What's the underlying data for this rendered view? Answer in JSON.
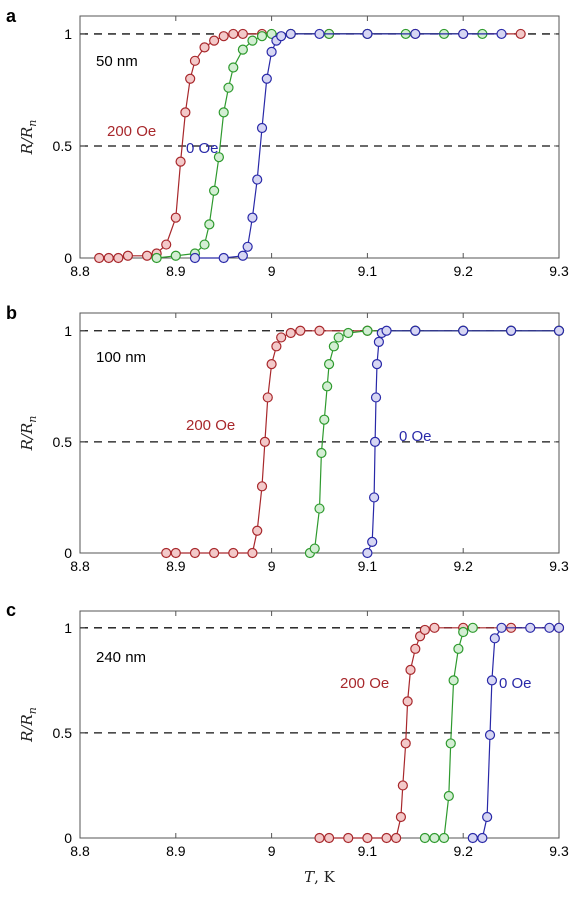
{
  "chart_data": [
    {
      "type": "scatter",
      "panel": "a",
      "thickness_label": "50 nm",
      "xlim": [
        8.8,
        9.3
      ],
      "ylim": [
        0,
        1.08
      ],
      "xticks": [
        "8.8",
        "8.9",
        "9",
        "9.1",
        "9.2",
        "9.3"
      ],
      "yticks": [
        "0",
        "0.5",
        "1"
      ],
      "ylabel": "R/Rn",
      "reference_lines": [
        0.5,
        1
      ],
      "series": [
        {
          "name": "200 Oe",
          "color": "#a8282c",
          "fill": "#f3c9c9",
          "points": [
            [
              8.82,
              0
            ],
            [
              8.83,
              0
            ],
            [
              8.84,
              0
            ],
            [
              8.85,
              0.01
            ],
            [
              8.87,
              0.01
            ],
            [
              8.88,
              0.02
            ],
            [
              8.89,
              0.06
            ],
            [
              8.9,
              0.18
            ],
            [
              8.905,
              0.43
            ],
            [
              8.91,
              0.65
            ],
            [
              8.915,
              0.8
            ],
            [
              8.92,
              0.88
            ],
            [
              8.93,
              0.94
            ],
            [
              8.94,
              0.97
            ],
            [
              8.95,
              0.99
            ],
            [
              8.96,
              1
            ],
            [
              8.97,
              1
            ],
            [
              8.99,
              1
            ],
            [
              9.02,
              1
            ],
            [
              9.06,
              1
            ],
            [
              9.1,
              1
            ],
            [
              9.15,
              1
            ],
            [
              9.2,
              1
            ],
            [
              9.26,
              1
            ]
          ]
        },
        {
          "name": "",
          "color": "#2e9a2e",
          "fill": "#d3eed3",
          "points": [
            [
              8.88,
              0
            ],
            [
              8.9,
              0.01
            ],
            [
              8.92,
              0.02
            ],
            [
              8.93,
              0.06
            ],
            [
              8.935,
              0.15
            ],
            [
              8.94,
              0.3
            ],
            [
              8.945,
              0.45
            ],
            [
              8.95,
              0.65
            ],
            [
              8.955,
              0.76
            ],
            [
              8.96,
              0.85
            ],
            [
              8.97,
              0.93
            ],
            [
              8.98,
              0.97
            ],
            [
              8.99,
              0.99
            ],
            [
              9.0,
              1
            ],
            [
              9.02,
              1
            ],
            [
              9.06,
              1
            ],
            [
              9.1,
              1
            ],
            [
              9.14,
              1
            ],
            [
              9.18,
              1
            ],
            [
              9.22,
              1
            ]
          ]
        },
        {
          "name": "0 Oe",
          "color": "#2929a8",
          "fill": "#d6d6f3",
          "points": [
            [
              8.92,
              0
            ],
            [
              8.95,
              0
            ],
            [
              8.97,
              0.01
            ],
            [
              8.975,
              0.05
            ],
            [
              8.98,
              0.18
            ],
            [
              8.985,
              0.35
            ],
            [
              8.99,
              0.58
            ],
            [
              8.995,
              0.8
            ],
            [
              9.0,
              0.92
            ],
            [
              9.005,
              0.97
            ],
            [
              9.01,
              0.99
            ],
            [
              9.02,
              1
            ],
            [
              9.05,
              1
            ],
            [
              9.1,
              1
            ],
            [
              9.15,
              1
            ],
            [
              9.2,
              1
            ],
            [
              9.24,
              1
            ]
          ]
        }
      ]
    },
    {
      "type": "scatter",
      "panel": "b",
      "thickness_label": "100 nm",
      "xlim": [
        8.8,
        9.3
      ],
      "ylim": [
        0,
        1.08
      ],
      "xticks": [
        "8.8",
        "8.9",
        "9",
        "9.1",
        "9.2",
        "9.3"
      ],
      "yticks": [
        "0",
        "0.5",
        "1"
      ],
      "ylabel": "R/Rn",
      "reference_lines": [
        0.5,
        1
      ],
      "series": [
        {
          "name": "200 Oe",
          "color": "#a8282c",
          "fill": "#f3c9c9",
          "points": [
            [
              8.89,
              0
            ],
            [
              8.9,
              0
            ],
            [
              8.92,
              0
            ],
            [
              8.94,
              0
            ],
            [
              8.96,
              0
            ],
            [
              8.98,
              0
            ],
            [
              8.985,
              0.1
            ],
            [
              8.99,
              0.3
            ],
            [
              8.993,
              0.5
            ],
            [
              8.996,
              0.7
            ],
            [
              9.0,
              0.85
            ],
            [
              9.005,
              0.93
            ],
            [
              9.01,
              0.97
            ],
            [
              9.02,
              0.99
            ],
            [
              9.03,
              1
            ],
            [
              9.05,
              1
            ],
            [
              9.1,
              1
            ],
            [
              9.15,
              1
            ],
            [
              9.2,
              1
            ],
            [
              9.25,
              1
            ],
            [
              9.3,
              1
            ]
          ]
        },
        {
          "name": "",
          "color": "#2e9a2e",
          "fill": "#d3eed3",
          "points": [
            [
              9.04,
              0
            ],
            [
              9.045,
              0.02
            ],
            [
              9.05,
              0.2
            ],
            [
              9.052,
              0.45
            ],
            [
              9.055,
              0.6
            ],
            [
              9.058,
              0.75
            ],
            [
              9.06,
              0.85
            ],
            [
              9.065,
              0.93
            ],
            [
              9.07,
              0.97
            ],
            [
              9.08,
              0.99
            ],
            [
              9.1,
              1
            ],
            [
              9.15,
              1
            ],
            [
              9.2,
              1
            ],
            [
              9.25,
              1
            ],
            [
              9.3,
              1
            ]
          ]
        },
        {
          "name": "0 Oe",
          "color": "#2929a8",
          "fill": "#d6d6f3",
          "points": [
            [
              9.1,
              0
            ],
            [
              9.105,
              0.05
            ],
            [
              9.107,
              0.25
            ],
            [
              9.108,
              0.5
            ],
            [
              9.109,
              0.7
            ],
            [
              9.11,
              0.85
            ],
            [
              9.112,
              0.95
            ],
            [
              9.115,
              0.99
            ],
            [
              9.12,
              1
            ],
            [
              9.15,
              1
            ],
            [
              9.2,
              1
            ],
            [
              9.25,
              1
            ],
            [
              9.3,
              1
            ]
          ]
        }
      ]
    },
    {
      "type": "scatter",
      "panel": "c",
      "thickness_label": "240 nm",
      "xlim": [
        8.8,
        9.3
      ],
      "ylim": [
        0,
        1.08
      ],
      "xticks": [
        "8.8",
        "8.9",
        "9",
        "9.1",
        "9.2",
        "9.3"
      ],
      "yticks": [
        "0",
        "0.5",
        "1"
      ],
      "xlabel": "T, K",
      "ylabel": "R/Rn",
      "reference_lines": [
        0.5,
        1
      ],
      "series": [
        {
          "name": "200 Oe",
          "color": "#a8282c",
          "fill": "#f3c9c9",
          "points": [
            [
              9.05,
              0
            ],
            [
              9.06,
              0
            ],
            [
              9.08,
              0
            ],
            [
              9.1,
              0
            ],
            [
              9.12,
              0
            ],
            [
              9.13,
              0
            ],
            [
              9.135,
              0.1
            ],
            [
              9.137,
              0.25
            ],
            [
              9.14,
              0.45
            ],
            [
              9.142,
              0.65
            ],
            [
              9.145,
              0.8
            ],
            [
              9.15,
              0.9
            ],
            [
              9.155,
              0.96
            ],
            [
              9.16,
              0.99
            ],
            [
              9.17,
              1
            ],
            [
              9.2,
              1
            ],
            [
              9.25,
              1
            ],
            [
              9.3,
              1
            ]
          ]
        },
        {
          "name": "",
          "color": "#2e9a2e",
          "fill": "#d3eed3",
          "points": [
            [
              9.16,
              0
            ],
            [
              9.17,
              0
            ],
            [
              9.18,
              0
            ],
            [
              9.185,
              0.2
            ],
            [
              9.187,
              0.45
            ],
            [
              9.19,
              0.75
            ],
            [
              9.195,
              0.9
            ],
            [
              9.2,
              0.98
            ],
            [
              9.21,
              1
            ]
          ]
        },
        {
          "name": "0 Oe",
          "color": "#2929a8",
          "fill": "#d6d6f3",
          "points": [
            [
              9.21,
              0
            ],
            [
              9.22,
              0
            ],
            [
              9.225,
              0.1
            ],
            [
              9.228,
              0.49
            ],
            [
              9.23,
              0.75
            ],
            [
              9.233,
              0.95
            ],
            [
              9.24,
              1
            ],
            [
              9.27,
              1
            ],
            [
              9.29,
              1
            ],
            [
              9.3,
              1
            ]
          ]
        }
      ]
    }
  ]
}
